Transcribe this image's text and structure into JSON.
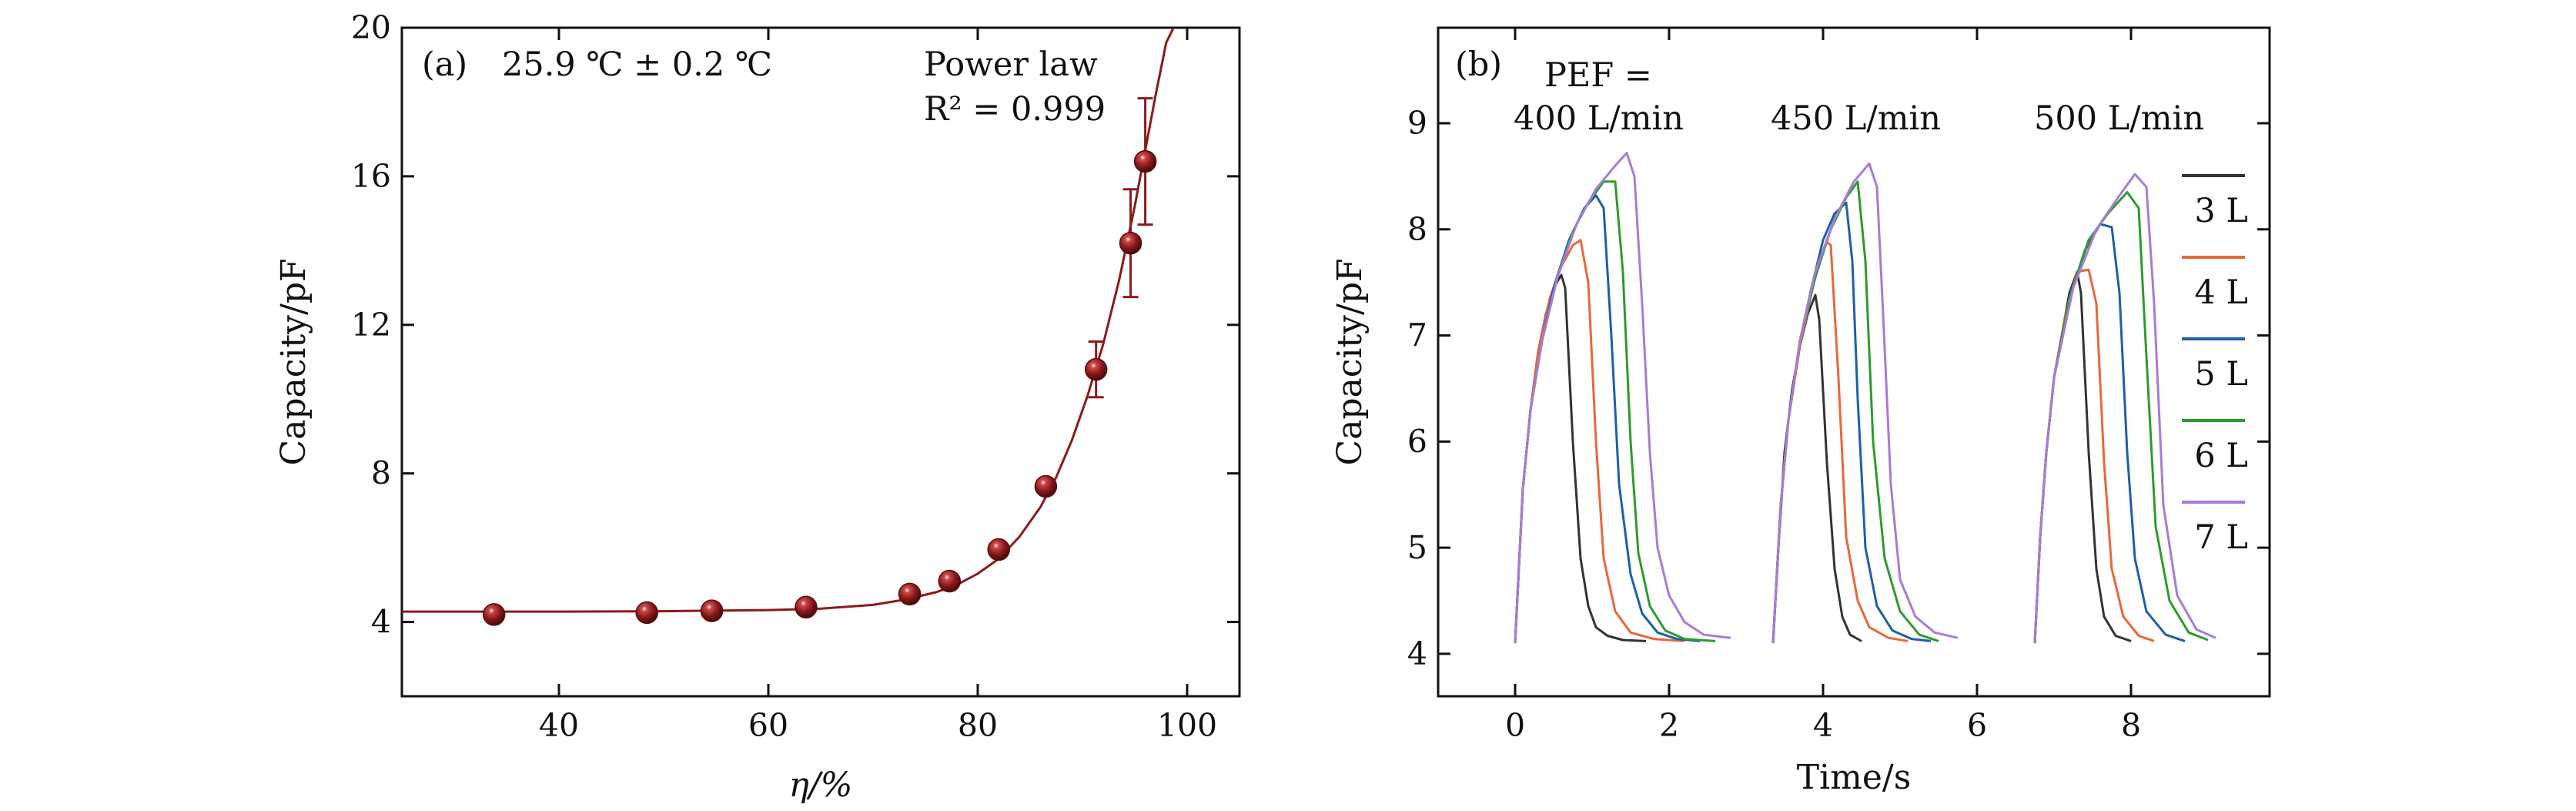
{
  "chart_data": [
    {
      "panel": "(a)",
      "type": "scatter",
      "title": "",
      "xlabel": "η/%",
      "ylabel": "Capacity/pF",
      "xlim": [
        25,
        105
      ],
      "ylim": [
        2,
        20
      ],
      "xticks": [
        40,
        60,
        80,
        100
      ],
      "yticks": [
        4,
        8,
        12,
        16,
        20
      ],
      "grid": false,
      "annotations": {
        "panel_label": "(a)",
        "temperature": "25.9 ℃ ± 0.2 ℃",
        "fit_name": "Power law",
        "fit_quality": "R² = 0.999"
      },
      "series": [
        {
          "kind": "points",
          "color": "#8b1a1a",
          "x": [
            33.8,
            48.4,
            54.6,
            63.6,
            73.5,
            77.3,
            82.0,
            86.5,
            91.3,
            94.6,
            96.0
          ],
          "y": [
            4.2,
            4.25,
            4.3,
            4.4,
            4.75,
            5.1,
            5.95,
            7.65,
            10.8,
            14.2,
            16.4
          ],
          "err": [
            0,
            0,
            0,
            0,
            0,
            0,
            0,
            0,
            0.75,
            1.45,
            1.7
          ]
        },
        {
          "kind": "fit",
          "color": "#8b1a1a",
          "x": [
            25,
            40,
            50,
            60,
            65,
            70,
            73,
            76,
            78,
            80,
            82,
            84,
            86,
            87.5,
            89,
            90.5,
            92,
            93.5,
            95,
            96,
            97,
            98,
            98.7
          ],
          "y": [
            4.28,
            4.28,
            4.29,
            4.32,
            4.36,
            4.46,
            4.6,
            4.8,
            5.0,
            5.3,
            5.7,
            6.3,
            7.1,
            7.9,
            8.9,
            10.1,
            11.5,
            13.2,
            15.2,
            16.7,
            18.2,
            19.6,
            20.0
          ]
        }
      ]
    },
    {
      "panel": "(b)",
      "type": "line",
      "title": "",
      "xlabel": "Time/s",
      "ylabel": "Capacity/pF",
      "xlim": [
        -1,
        9.8
      ],
      "ylim": [
        3.6,
        9.9
      ],
      "xticks": [
        0,
        2,
        4,
        6,
        8
      ],
      "yticks": [
        4,
        5,
        6,
        7,
        8,
        9
      ],
      "grid": false,
      "legend_position": "right",
      "annotations": {
        "panel_label": "(b)",
        "pef_label": "PEF =",
        "group_labels": [
          "400 L/min",
          "450 L/min",
          "500 L/min"
        ]
      },
      "series": [
        {
          "name": "3 L",
          "color": "#333333",
          "groups": [
            {
              "x": [
                0,
                0.1,
                0.2,
                0.3,
                0.4,
                0.5,
                0.6,
                0.65,
                0.75,
                0.85,
                0.95,
                1.05,
                1.2,
                1.4,
                1.7
              ],
              "y": [
                4.1,
                5.55,
                6.3,
                6.85,
                7.2,
                7.45,
                7.57,
                7.45,
                6.0,
                4.9,
                4.45,
                4.25,
                4.17,
                4.13,
                4.12
              ]
            },
            {
              "x": [
                3.35,
                3.42,
                3.5,
                3.6,
                3.7,
                3.8,
                3.9,
                3.95,
                4.05,
                4.15,
                4.25,
                4.35,
                4.5
              ],
              "y": [
                4.1,
                5.0,
                5.9,
                6.5,
                6.9,
                7.2,
                7.38,
                7.15,
                5.8,
                4.8,
                4.35,
                4.18,
                4.12
              ]
            },
            {
              "x": [
                6.75,
                6.82,
                6.9,
                7.0,
                7.1,
                7.2,
                7.3,
                7.35,
                7.45,
                7.55,
                7.65,
                7.8,
                8.0
              ],
              "y": [
                4.1,
                5.1,
                5.9,
                6.6,
                7.0,
                7.4,
                7.6,
                7.4,
                5.9,
                4.8,
                4.35,
                4.17,
                4.12
              ]
            }
          ]
        },
        {
          "name": "4 L",
          "color": "#e8673a",
          "groups": [
            {
              "x": [
                0,
                0.1,
                0.2,
                0.3,
                0.45,
                0.6,
                0.75,
                0.85,
                0.95,
                1.05,
                1.15,
                1.3,
                1.5,
                1.8,
                2.2
              ],
              "y": [
                4.1,
                5.55,
                6.3,
                6.85,
                7.35,
                7.65,
                7.85,
                7.9,
                7.5,
                6.0,
                4.9,
                4.4,
                4.2,
                4.14,
                4.12
              ]
            },
            {
              "x": [
                3.35,
                3.45,
                3.55,
                3.7,
                3.85,
                3.95,
                4.05,
                4.1,
                4.2,
                4.3,
                4.45,
                4.6,
                4.85,
                5.1
              ],
              "y": [
                4.1,
                5.4,
                6.2,
                6.9,
                7.4,
                7.7,
                7.88,
                7.85,
                6.6,
                5.1,
                4.5,
                4.25,
                4.15,
                4.12
              ]
            },
            {
              "x": [
                6.75,
                6.82,
                6.9,
                7.0,
                7.15,
                7.3,
                7.45,
                7.55,
                7.65,
                7.75,
                7.9,
                8.1,
                8.3
              ],
              "y": [
                4.1,
                5.1,
                5.9,
                6.6,
                7.2,
                7.6,
                7.62,
                7.3,
                5.8,
                4.8,
                4.35,
                4.17,
                4.12
              ]
            }
          ]
        },
        {
          "name": "5 L",
          "color": "#1e5fa8",
          "groups": [
            {
              "x": [
                0,
                0.1,
                0.2,
                0.35,
                0.5,
                0.7,
                0.9,
                1.05,
                1.15,
                1.25,
                1.35,
                1.5,
                1.65,
                1.85,
                2.1,
                2.4
              ],
              "y": [
                4.1,
                5.55,
                6.3,
                6.95,
                7.45,
                7.9,
                8.2,
                8.32,
                8.2,
                7.0,
                5.6,
                4.75,
                4.38,
                4.2,
                4.14,
                4.12
              ]
            },
            {
              "x": [
                3.35,
                3.45,
                3.55,
                3.7,
                3.85,
                4.0,
                4.15,
                4.3,
                4.38,
                4.45,
                4.55,
                4.7,
                4.9,
                5.15,
                5.4
              ],
              "y": [
                4.1,
                5.4,
                6.2,
                6.95,
                7.45,
                7.9,
                8.15,
                8.25,
                7.7,
                6.4,
                5.0,
                4.45,
                4.22,
                4.14,
                4.12
              ]
            },
            {
              "x": [
                6.75,
                6.82,
                6.9,
                7.0,
                7.2,
                7.4,
                7.6,
                7.75,
                7.85,
                7.95,
                8.05,
                8.2,
                8.45,
                8.7
              ],
              "y": [
                4.1,
                5.1,
                5.9,
                6.6,
                7.35,
                7.8,
                8.05,
                8.02,
                7.4,
                5.9,
                4.9,
                4.4,
                4.18,
                4.12
              ]
            }
          ]
        },
        {
          "name": "6 L",
          "color": "#2e9a2e",
          "groups": [
            {
              "x": [
                0,
                0.1,
                0.2,
                0.35,
                0.55,
                0.75,
                0.95,
                1.15,
                1.3,
                1.4,
                1.5,
                1.6,
                1.75,
                1.95,
                2.2,
                2.6
              ],
              "y": [
                4.1,
                5.55,
                6.3,
                6.95,
                7.55,
                7.98,
                8.25,
                8.45,
                8.45,
                7.6,
                6.0,
                4.95,
                4.45,
                4.22,
                4.14,
                4.12
              ]
            },
            {
              "x": [
                3.35,
                3.45,
                3.55,
                3.7,
                3.9,
                4.1,
                4.3,
                4.45,
                4.55,
                4.65,
                4.8,
                5.0,
                5.25,
                5.5
              ],
              "y": [
                4.1,
                5.4,
                6.2,
                6.95,
                7.55,
                8.0,
                8.3,
                8.45,
                7.7,
                6.0,
                4.9,
                4.4,
                4.18,
                4.12
              ]
            },
            {
              "x": [
                6.75,
                6.82,
                6.9,
                7.0,
                7.2,
                7.45,
                7.7,
                7.95,
                8.1,
                8.2,
                8.32,
                8.5,
                8.75,
                9.0
              ],
              "y": [
                4.1,
                5.1,
                5.9,
                6.6,
                7.35,
                7.9,
                8.15,
                8.35,
                8.2,
                6.8,
                5.2,
                4.5,
                4.2,
                4.13
              ]
            }
          ]
        },
        {
          "name": "7 L",
          "color": "#a77bd6",
          "groups": [
            {
              "x": [
                0,
                0.1,
                0.2,
                0.35,
                0.55,
                0.8,
                1.05,
                1.3,
                1.45,
                1.55,
                1.65,
                1.75,
                1.85,
                2.0,
                2.2,
                2.45,
                2.8
              ],
              "y": [
                4.1,
                5.55,
                6.3,
                6.95,
                7.55,
                8.05,
                8.38,
                8.6,
                8.72,
                8.5,
                7.3,
                5.9,
                5.0,
                4.55,
                4.3,
                4.18,
                4.15
              ]
            },
            {
              "x": [
                3.35,
                3.45,
                3.55,
                3.7,
                3.9,
                4.15,
                4.4,
                4.6,
                4.7,
                4.78,
                4.88,
                5.0,
                5.2,
                5.45,
                5.75
              ],
              "y": [
                4.1,
                5.4,
                6.2,
                6.95,
                7.6,
                8.1,
                8.45,
                8.62,
                8.4,
                7.2,
                5.6,
                4.7,
                4.35,
                4.2,
                4.15
              ]
            },
            {
              "x": [
                6.75,
                6.82,
                6.9,
                7.0,
                7.25,
                7.55,
                7.85,
                8.05,
                8.2,
                8.3,
                8.42,
                8.6,
                8.85,
                9.1
              ],
              "y": [
                4.1,
                5.1,
                5.9,
                6.6,
                7.45,
                8.0,
                8.32,
                8.52,
                8.4,
                7.3,
                5.4,
                4.55,
                4.23,
                4.15
              ]
            }
          ]
        }
      ]
    }
  ]
}
